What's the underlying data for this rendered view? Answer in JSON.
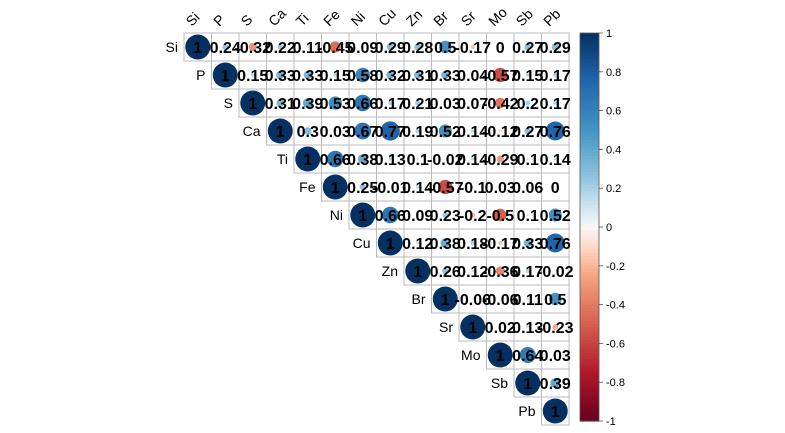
{
  "chart_data": {
    "type": "heatmap",
    "variant": "upper-triangle correlation matrix (circles with coefficient labels)",
    "variables": [
      "Si",
      "P",
      "S",
      "Ca",
      "Ti",
      "Fe",
      "Ni",
      "Cu",
      "Zn",
      "Br",
      "Sr",
      "Mo",
      "Sb",
      "Pb"
    ],
    "cell_labels": [
      [
        "1",
        "0.24",
        "-0.32",
        "0.22",
        "0.11",
        "-0.45",
        "0.09",
        "0.29",
        "0.28",
        "0.5",
        "-0.17",
        "0",
        "0.27",
        "0.29"
      ],
      [
        "1",
        "0.15",
        "0.33",
        "0.33",
        "0.15",
        "0.58",
        "0.32",
        "0.31",
        "0.33",
        "0.04",
        "-0.57",
        "0.15",
        "0.17"
      ],
      [
        "1",
        "0.31",
        "0.39",
        "0.53",
        "0.66",
        "0.17",
        "0.21",
        "0.03",
        "0.07",
        "-0.42",
        "0.2",
        "0.17"
      ],
      [
        "1",
        "0.3",
        "0.03",
        "0.67",
        "0.77",
        "0.19",
        "0.52",
        "0.14",
        "-0.12",
        "0.27",
        "0.76"
      ],
      [
        "1",
        "0.66",
        "0.38",
        "0.13",
        "0.1",
        "-0.02",
        "0.14",
        "-0.29",
        "0.1",
        "0.14"
      ],
      [
        "1",
        "0.25",
        "-0.01",
        "0.14",
        "-0.57",
        "-0.1",
        "0.03",
        "0.06",
        "0"
      ],
      [
        "1",
        "0.66",
        "0.09",
        "0.23",
        "-0.2",
        "-0.5",
        "0.1",
        "0.52"
      ],
      [
        "1",
        "0.12",
        "0.38",
        "0.18",
        "-0.17",
        "0.33",
        "0.76"
      ],
      [
        "1",
        "0.26",
        "0.12",
        "-0.36",
        "0.17",
        "-0.02"
      ],
      [
        "1",
        "-0.06",
        "-0.06",
        "0.11",
        "0.5"
      ],
      [
        "1",
        "0.02",
        "0.13",
        "-0.23"
      ],
      [
        "1",
        "0.64",
        "0.03"
      ],
      [
        "1",
        "0.39"
      ],
      [
        "1"
      ]
    ],
    "legend": {
      "ticks": [
        "1",
        "0.8",
        "0.6",
        "0.4",
        "0.2",
        "0",
        "-0.2",
        "-0.4",
        "-0.6",
        "-0.8",
        "-1"
      ],
      "range": [
        -1,
        1
      ],
      "colors": {
        "negative": "#67001f",
        "neutral": "#f7f7f7",
        "positive": "#053061"
      }
    }
  }
}
